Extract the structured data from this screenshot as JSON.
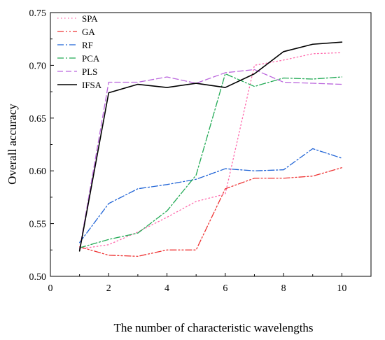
{
  "chart_data": {
    "type": "line",
    "xlabel": "The number of characteristic wavelengths",
    "ylabel": "Overall accuracy",
    "xlim": [
      0,
      11
    ],
    "ylim": [
      0.5,
      0.75
    ],
    "x_ticks": [
      0,
      2,
      4,
      6,
      8,
      10
    ],
    "x_tick_labels": [
      "0",
      "2",
      "4",
      "6",
      "8",
      "10"
    ],
    "y_ticks": [
      0.5,
      0.55,
      0.6,
      0.65,
      0.7,
      0.75
    ],
    "y_tick_labels": [
      "0.50",
      "0.55",
      "0.60",
      "0.65",
      "0.70",
      "0.75"
    ],
    "grid": false,
    "legend_position": "top-left",
    "x": [
      1,
      2,
      3,
      4,
      5,
      6,
      7,
      8,
      9,
      10
    ],
    "series": [
      {
        "name": "SPA",
        "color": "#ff66aa",
        "dash": "dot",
        "values": [
          0.526,
          0.53,
          0.542,
          0.556,
          0.571,
          0.578,
          0.7,
          0.705,
          0.711,
          0.712
        ]
      },
      {
        "name": "GA",
        "color": "#ee3333",
        "dash": "dashdotdot",
        "values": [
          0.528,
          0.52,
          0.519,
          0.525,
          0.525,
          0.583,
          0.593,
          0.593,
          0.595,
          0.603
        ]
      },
      {
        "name": "RF",
        "color": "#1f63d6",
        "dash": "dashdot",
        "values": [
          0.532,
          0.569,
          0.583,
          0.587,
          0.592,
          0.602,
          0.6,
          0.601,
          0.621,
          0.612
        ]
      },
      {
        "name": "PCA",
        "color": "#22aa55",
        "dash": "dashdot",
        "values": [
          0.527,
          0.535,
          0.541,
          0.562,
          0.596,
          0.692,
          0.68,
          0.688,
          0.687,
          0.689
        ]
      },
      {
        "name": "PLS",
        "color": "#bb66dd",
        "dash": "dash",
        "values": [
          0.525,
          0.684,
          0.684,
          0.689,
          0.683,
          0.693,
          0.696,
          0.684,
          0.683,
          0.682
        ]
      },
      {
        "name": "IFSA",
        "color": "#000000",
        "dash": "solid",
        "values": [
          0.524,
          0.674,
          0.682,
          0.679,
          0.683,
          0.679,
          0.692,
          0.713,
          0.72,
          0.722
        ]
      }
    ]
  }
}
